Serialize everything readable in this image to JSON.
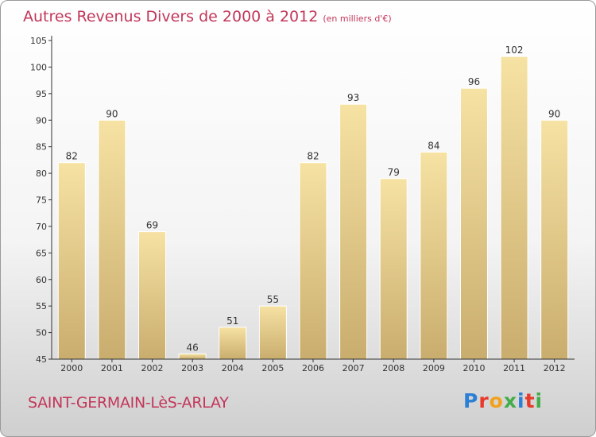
{
  "header": {
    "title": "Autres Revenus Divers de 2000 à 2012",
    "unit": "(en milliers d'€)"
  },
  "footer": {
    "commune": "SAINT-GERMAIN-LèS-ARLAY",
    "logo_letters": [
      "P",
      "r",
      "o",
      "x",
      "i",
      "t",
      "i"
    ],
    "logo_colors": [
      "#2b7fd4",
      "#e8392a",
      "#f2a11d",
      "#43ad49",
      "#2b7fd4",
      "#e8392a",
      "#43ad49"
    ]
  },
  "chart_data": {
    "type": "bar",
    "categories": [
      "2000",
      "2001",
      "2002",
      "2003",
      "2004",
      "2005",
      "2006",
      "2007",
      "2008",
      "2009",
      "2010",
      "2011",
      "2012"
    ],
    "values": [
      82,
      90,
      69,
      46,
      51,
      55,
      82,
      93,
      79,
      84,
      96,
      102,
      90
    ],
    "title": "Autres Revenus Divers de 2000 à 2012",
    "xlabel": "",
    "ylabel": "",
    "ylim": [
      45,
      105
    ],
    "yticks": [
      45,
      50,
      55,
      60,
      65,
      70,
      75,
      80,
      85,
      90,
      95,
      100,
      105
    ],
    "grid": false,
    "colors": {
      "bar_light": "#f6e2a3",
      "bar_dark": "#c9ad6e",
      "axis": "#333333"
    }
  }
}
